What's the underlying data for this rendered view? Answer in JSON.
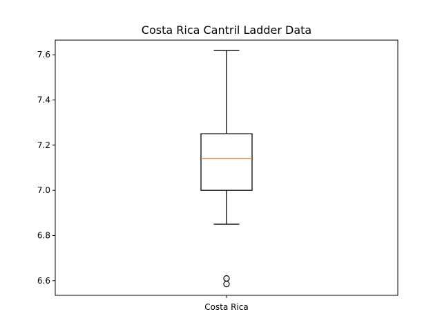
{
  "chart_data": {
    "type": "box",
    "title": "Costa Rica Cantril Ladder Data",
    "xlabel": "",
    "ylabel": "",
    "categories": [
      "Costa Rica"
    ],
    "ylim": [
      6.535,
      7.665
    ],
    "yticks": [
      6.6,
      6.8,
      7.0,
      7.2,
      7.4,
      7.6
    ],
    "ytick_labels": [
      "6.6",
      "6.8",
      "7.0",
      "7.2",
      "7.4",
      "7.6"
    ],
    "grid": false,
    "boxes": [
      {
        "category": "Costa Rica",
        "whisker_low": 6.85,
        "q1": 7.0,
        "median": 7.14,
        "q3": 7.25,
        "whisker_high": 7.62,
        "outliers": [
          6.61,
          6.585
        ]
      }
    ],
    "colors": {
      "box": "#000000",
      "median": "#ff7f0e",
      "whisker": "#000000",
      "outlier": "#000000"
    }
  }
}
